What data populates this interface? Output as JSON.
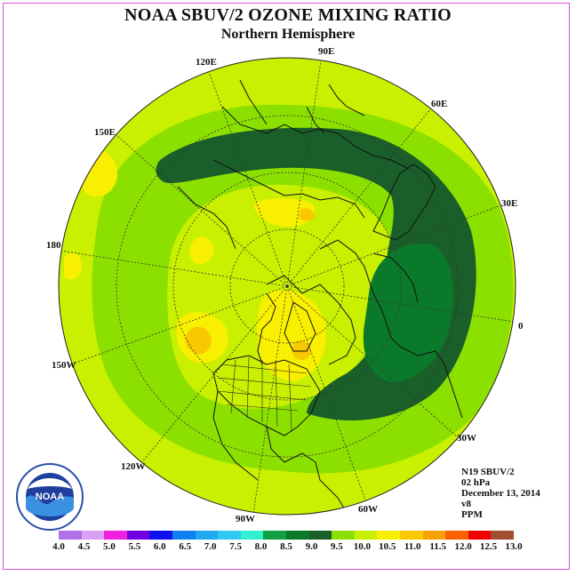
{
  "header": {
    "title": "NOAA SBUV/2 OZONE MIXING RATIO",
    "subtitle": "Northern Hemisphere"
  },
  "map": {
    "projection": "north-polar-stereographic",
    "longitude_labels": [
      "120E",
      "90E",
      "60E",
      "150E",
      "30E",
      "180",
      "0",
      "150W",
      "30W",
      "120W",
      "60W",
      "90W"
    ],
    "field_colors": {
      "8.5": "#0a7a2a",
      "9.0": "#1a5f2a",
      "9.5": "#8ce000",
      "10.0": "#c8f000",
      "10.5": "#f8f000",
      "11.0": "#f8c800"
    }
  },
  "info": {
    "satellite": "N19 SBUV/2",
    "level": "02 hPa",
    "date": "December 13, 2014",
    "version": "v8",
    "units": "PPM"
  },
  "logo": {
    "text": "NOAA",
    "ring_text": "NATIONAL OCEANIC AND ATMOSPHERIC ADMINISTRATION",
    "ring_text_bottom": "U.S. DEPARTMENT OF COMMERCE"
  },
  "colorbar": {
    "ticks": [
      "4.0",
      "4.5",
      "5.0",
      "5.5",
      "6.0",
      "6.5",
      "7.0",
      "7.5",
      "8.0",
      "8.5",
      "9.0",
      "9.5",
      "10.0",
      "10.5",
      "11.0",
      "11.5",
      "12.0",
      "12.5",
      "13.0"
    ],
    "colors": [
      "#b070e8",
      "#d8a0f0",
      "#f020e0",
      "#7000e0",
      "#1010f0",
      "#1080f0",
      "#20a8f0",
      "#30c8f0",
      "#30f0d0",
      "#10a040",
      "#0a7a2a",
      "#1a5f2a",
      "#8ce000",
      "#c8f000",
      "#f8f000",
      "#f8c800",
      "#f8a000",
      "#f86000",
      "#f00000",
      "#a05030"
    ]
  }
}
